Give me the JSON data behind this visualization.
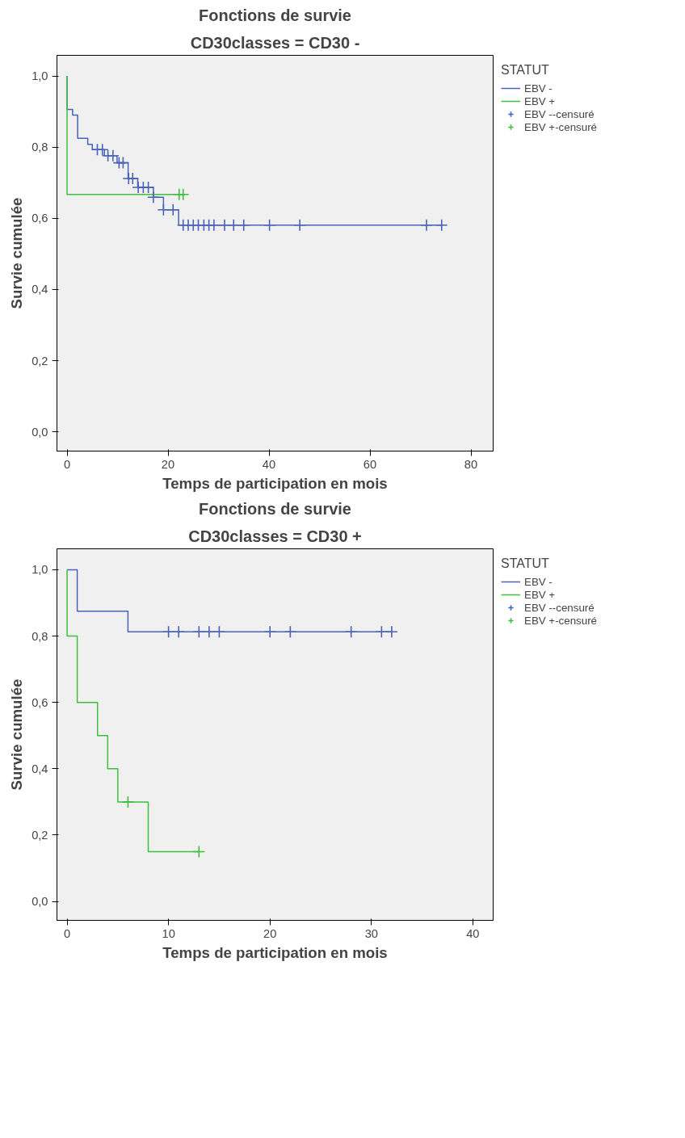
{
  "chart_data": [
    {
      "type": "step",
      "title": "Fonctions de survie",
      "subtitle": "CD30classes = CD30 -",
      "xlabel": "Temps de participation en mois",
      "ylabel": "Survie cumulée",
      "legend_title": "STATUT",
      "legend": "right",
      "grid": false,
      "line_style": "solid",
      "xlim": [
        -2,
        84.4
      ],
      "ylim": [
        -0.054,
        1.058
      ],
      "xticks": [
        0,
        20,
        40,
        60,
        80
      ],
      "yticks": [
        {
          "value": 0,
          "label": "0,0"
        },
        {
          "value": 0.2,
          "label": "0,2"
        },
        {
          "value": 0.4,
          "label": "0,4"
        },
        {
          "value": 0.6,
          "label": "0,6"
        },
        {
          "value": 0.8,
          "label": "0,8"
        },
        {
          "value": 1.0,
          "label": "1,0"
        }
      ],
      "series": [
        {
          "name": "EBV -",
          "color": "#4a62b8",
          "x": [
            0,
            0,
            1.1,
            2.1,
            4.1,
            5,
            7.4,
            9.9,
            12.1,
            14,
            17.1,
            19.1,
            22.1,
            74.2
          ],
          "values": [
            1,
            0.906,
            0.89,
            0.825,
            0.808,
            0.793,
            0.776,
            0.756,
            0.712,
            0.687,
            0.659,
            0.624,
            0.581,
            0.581
          ]
        },
        {
          "name": "EBV +",
          "color": "#3fbf3f",
          "x": [
            0,
            0,
            23
          ],
          "values": [
            1,
            0.667,
            0.667
          ]
        },
        {
          "name": "EBV --censuré",
          "type": "scatter",
          "marker": "cross",
          "color": "#4a62b8",
          "x": [
            6,
            7,
            8.1,
            9.1,
            10.3,
            11.1,
            12.2,
            13,
            14.1,
            15.1,
            16.1,
            17.1,
            19.1,
            21,
            23,
            24,
            25,
            26,
            27.1,
            28.1,
            29.1,
            31.2,
            33,
            35,
            40.1,
            46.1,
            71.2,
            74.2
          ],
          "values": [
            0.793,
            0.793,
            0.776,
            0.776,
            0.756,
            0.756,
            0.712,
            0.712,
            0.687,
            0.687,
            0.687,
            0.659,
            0.624,
            0.624,
            0.581,
            0.581,
            0.581,
            0.581,
            0.581,
            0.581,
            0.581,
            0.581,
            0.581,
            0.581,
            0.581,
            0.581,
            0.581,
            0.581
          ]
        },
        {
          "name": "EBV +-censuré",
          "type": "scatter",
          "marker": "cross",
          "color": "#3fbf3f",
          "x": [
            22.2,
            23
          ],
          "values": [
            0.667,
            0.667
          ]
        }
      ]
    },
    {
      "type": "step",
      "title": "Fonctions de survie",
      "subtitle": "CD30classes = CD30 +",
      "xlabel": "Temps de participation en mois",
      "ylabel": "Survie cumulée",
      "legend_title": "STATUT",
      "legend": "right",
      "grid": false,
      "line_style": "solid",
      "xlim": [
        -1,
        42
      ],
      "ylim": [
        -0.057,
        1.063
      ],
      "xticks": [
        0,
        10,
        20,
        30,
        40
      ],
      "yticks": [
        {
          "value": 0,
          "label": "0,0"
        },
        {
          "value": 0.2,
          "label": "0,2"
        },
        {
          "value": 0.4,
          "label": "0,4"
        },
        {
          "value": 0.6,
          "label": "0,6"
        },
        {
          "value": 0.8,
          "label": "0,8"
        },
        {
          "value": 1.0,
          "label": "1,0"
        }
      ],
      "series": [
        {
          "name": "EBV -",
          "color": "#4a62b8",
          "x": [
            0,
            1,
            6,
            32
          ],
          "values": [
            1,
            0.875,
            0.813,
            0.813
          ]
        },
        {
          "name": "EBV +",
          "color": "#3fbf3f",
          "x": [
            0,
            0,
            1,
            3,
            4,
            5,
            8,
            13
          ],
          "values": [
            1,
            0.8,
            0.6,
            0.5,
            0.4,
            0.3,
            0.15,
            0.15
          ]
        },
        {
          "name": "EBV --censuré",
          "type": "scatter",
          "marker": "cross",
          "color": "#4a62b8",
          "x": [
            10,
            11,
            13,
            14,
            15,
            20,
            22,
            28,
            31,
            32
          ],
          "values": [
            0.813,
            0.813,
            0.813,
            0.813,
            0.813,
            0.813,
            0.813,
            0.813,
            0.813,
            0.813
          ]
        },
        {
          "name": "EBV +-censuré",
          "type": "scatter",
          "marker": "cross",
          "color": "#3fbf3f",
          "x": [
            6,
            13
          ],
          "values": [
            0.3,
            0.15
          ]
        }
      ]
    }
  ]
}
